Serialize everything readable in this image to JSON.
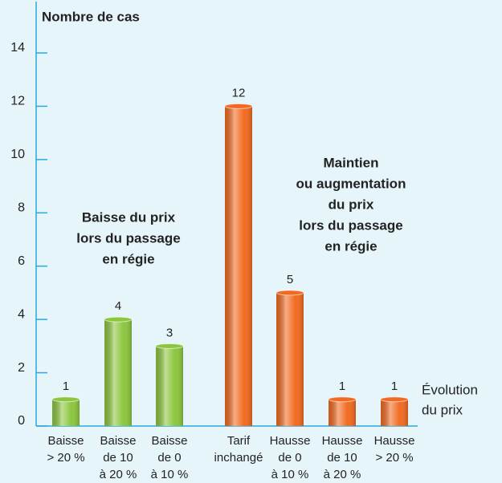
{
  "chart_data": {
    "type": "bar",
    "y_label": "Nombre de cas",
    "x_label": [
      "Évolution",
      "du prix"
    ],
    "categories": [
      [
        "Baisse",
        "> 20 %"
      ],
      [
        "Baisse",
        "de 10",
        "à 20 %"
      ],
      [
        "Baisse",
        "de 0",
        "à 10 %"
      ],
      [
        "Tarif",
        "inchangé"
      ],
      [
        "Hausse",
        "de 0",
        "à 10 %"
      ],
      [
        "Hausse",
        "de 10",
        "à 20 %"
      ],
      [
        "Hausse",
        "> 20 %"
      ]
    ],
    "values": [
      1,
      4,
      3,
      12,
      5,
      1,
      1
    ],
    "colors": [
      "#8cc63e",
      "#8cc63e",
      "#8cc63e",
      "#f26a21",
      "#f26a21",
      "#f26a21",
      "#f26a21"
    ],
    "ylim": [
      0,
      14
    ],
    "yticks": [
      0,
      2,
      4,
      6,
      8,
      10,
      12,
      14
    ],
    "annotations": [
      {
        "text": [
          "Baisse du prix",
          "lors du passage",
          "en régie"
        ],
        "color": "#8cc63e"
      },
      {
        "text": [
          "Maintien",
          "ou augmentation",
          "du prix",
          "lors du passage",
          "en régie"
        ],
        "color": "#f26a21"
      }
    ],
    "axis_color": "#29a9e0"
  }
}
